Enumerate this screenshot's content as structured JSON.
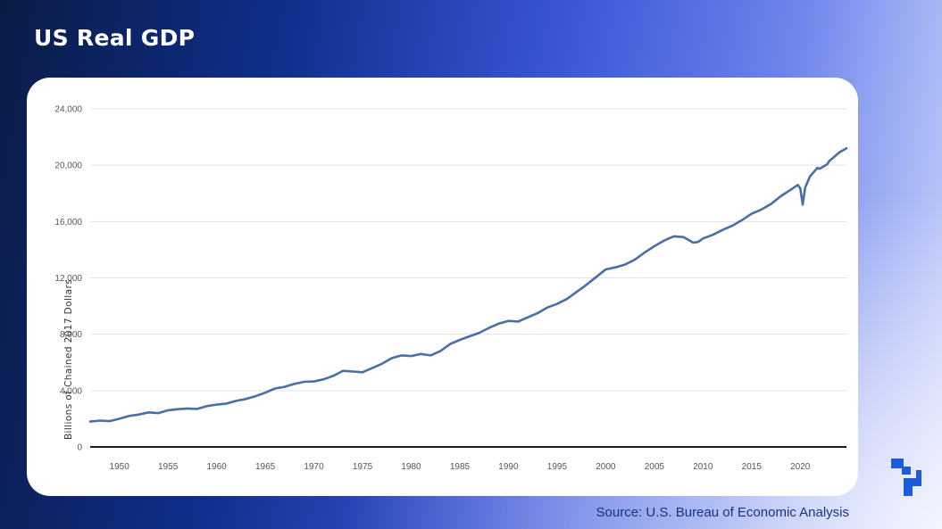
{
  "header": {
    "title": "US Real GDP"
  },
  "footer": {
    "source": "Source: U.S. Bureau of Economic Analysis"
  },
  "colors": {
    "line": "#4a6fa5",
    "grid": "#e3e3e3",
    "axis": "#1a1a1a",
    "logo": "#1d5bd8"
  },
  "logo": {
    "icon": "brand-logo-icon"
  },
  "chart_data": {
    "type": "line",
    "title": "",
    "xlabel": "",
    "ylabel": "Billions of Chained 2017 Dollars",
    "xlim": [
      1947,
      2024.75
    ],
    "ylim": [
      0,
      24000
    ],
    "yticks": [
      0,
      4000,
      8000,
      12000,
      16000,
      20000,
      24000
    ],
    "ytick_labels": [
      "0",
      "4,000",
      "8,000",
      "12,000",
      "16,000",
      "20,000",
      "24,000"
    ],
    "xticks": [
      1950,
      1955,
      1960,
      1965,
      1970,
      1975,
      1980,
      1985,
      1990,
      1995,
      2000,
      2005,
      2010,
      2015,
      2020
    ],
    "xtick_labels": [
      "1950",
      "1955",
      "1960",
      "1965",
      "1970",
      "1975",
      "1980",
      "1985",
      "1990",
      "1995",
      "2000",
      "2005",
      "2010",
      "2015",
      "2020"
    ],
    "grid": true,
    "series": [
      {
        "points": [
          [
            1947,
            1800
          ],
          [
            1948,
            1870
          ],
          [
            1949,
            1830
          ],
          [
            1950,
            2000
          ],
          [
            1951,
            2200
          ],
          [
            1952,
            2300
          ],
          [
            1953,
            2450
          ],
          [
            1954,
            2400
          ],
          [
            1955,
            2600
          ],
          [
            1956,
            2680
          ],
          [
            1957,
            2730
          ],
          [
            1958,
            2700
          ],
          [
            1959,
            2900
          ],
          [
            1960,
            3000
          ],
          [
            1961,
            3080
          ],
          [
            1962,
            3270
          ],
          [
            1963,
            3400
          ],
          [
            1964,
            3600
          ],
          [
            1965,
            3850
          ],
          [
            1966,
            4150
          ],
          [
            1967,
            4270
          ],
          [
            1968,
            4480
          ],
          [
            1969,
            4620
          ],
          [
            1970,
            4650
          ],
          [
            1971,
            4800
          ],
          [
            1972,
            5050
          ],
          [
            1973,
            5400
          ],
          [
            1974,
            5350
          ],
          [
            1975,
            5300
          ],
          [
            1976,
            5600
          ],
          [
            1977,
            5900
          ],
          [
            1978,
            6300
          ],
          [
            1979,
            6500
          ],
          [
            1980,
            6450
          ],
          [
            1981,
            6600
          ],
          [
            1982,
            6500
          ],
          [
            1983,
            6800
          ],
          [
            1984,
            7300
          ],
          [
            1985,
            7600
          ],
          [
            1986,
            7850
          ],
          [
            1987,
            8100
          ],
          [
            1988,
            8450
          ],
          [
            1989,
            8750
          ],
          [
            1990,
            8950
          ],
          [
            1991,
            8900
          ],
          [
            1992,
            9200
          ],
          [
            1993,
            9500
          ],
          [
            1994,
            9900
          ],
          [
            1995,
            10150
          ],
          [
            1996,
            10500
          ],
          [
            1997,
            11000
          ],
          [
            1998,
            11500
          ],
          [
            1999,
            12050
          ],
          [
            2000,
            12600
          ],
          [
            2001,
            12750
          ],
          [
            2002,
            12950
          ],
          [
            2003,
            13300
          ],
          [
            2004,
            13800
          ],
          [
            2005,
            14250
          ],
          [
            2006,
            14650
          ],
          [
            2007,
            14950
          ],
          [
            2008,
            14900
          ],
          [
            2008.5,
            14700
          ],
          [
            2009,
            14500
          ],
          [
            2009.5,
            14550
          ],
          [
            2010,
            14800
          ],
          [
            2011,
            15050
          ],
          [
            2012,
            15400
          ],
          [
            2013,
            15700
          ],
          [
            2014,
            16100
          ],
          [
            2015,
            16550
          ],
          [
            2016,
            16850
          ],
          [
            2017,
            17250
          ],
          [
            2018,
            17800
          ],
          [
            2019,
            18250
          ],
          [
            2019.75,
            18600
          ],
          [
            2020,
            18350
          ],
          [
            2020.25,
            17200
          ],
          [
            2020.5,
            18400
          ],
          [
            2021,
            19200
          ],
          [
            2021.75,
            19800
          ],
          [
            2022,
            19750
          ],
          [
            2022.75,
            20050
          ],
          [
            2023,
            20300
          ],
          [
            2023.5,
            20600
          ],
          [
            2024,
            20900
          ],
          [
            2024.75,
            21200
          ]
        ]
      }
    ]
  }
}
